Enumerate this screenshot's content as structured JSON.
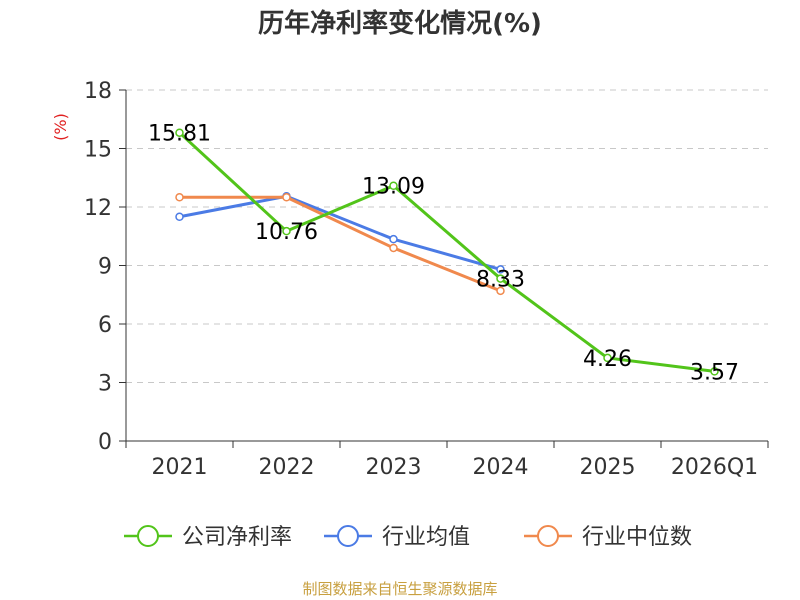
{
  "chart_data": {
    "type": "line",
    "title": "历年净利率变化情况(%)",
    "ylabel": "(%)",
    "xlabel": "",
    "ylim": [
      0,
      18
    ],
    "yticks": [
      0,
      3,
      6,
      9,
      12,
      15,
      18
    ],
    "grid": true,
    "legend_position": "bottom",
    "categories": [
      "2021",
      "2022",
      "2023",
      "2024",
      "2025",
      "2026Q1"
    ],
    "series": [
      {
        "name": "公司净利率",
        "color": "#52c41a",
        "values": [
          15.81,
          10.76,
          13.09,
          8.33,
          4.26,
          3.57
        ],
        "labels": [
          "15.81",
          "10.76",
          "13.09",
          "8.33",
          "4.26",
          "3.57"
        ]
      },
      {
        "name": "行业均值",
        "color": "#4b7be5",
        "values": [
          11.5,
          12.55,
          10.35,
          8.8,
          null,
          null
        ]
      },
      {
        "name": "行业中位数",
        "color": "#f0894d",
        "values": [
          12.5,
          12.5,
          9.9,
          7.7,
          null,
          null
        ]
      }
    ],
    "source": "制图数据来自恒生聚源数据库",
    "colors": {
      "title": "#333333",
      "axis": "#333333",
      "grid": "#c8c8c8",
      "ylabel": "#e02020",
      "source": "#c8a040"
    }
  }
}
